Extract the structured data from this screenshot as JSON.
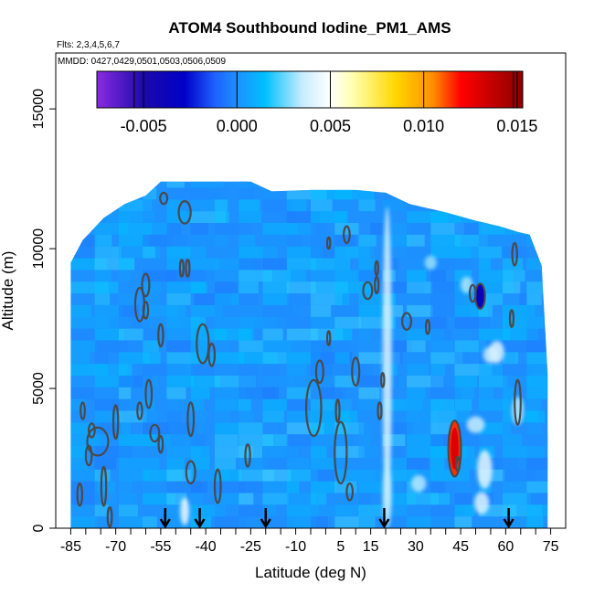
{
  "chart_data": {
    "type": "heatmap",
    "title": "ATOM4 Southbound Iodine_PM1_AMS",
    "flights_label": "Flts: 2,3,4,5,6,7",
    "mmdd_label": "MMDD: 0427,0429,0501,0503,0506,0509",
    "xlabel": "Latitude (deg N)",
    "ylabel": "Altitude (m)",
    "xlim": [
      -90,
      80
    ],
    "ylim": [
      0,
      17000
    ],
    "x_ticks": [
      -85,
      -70,
      -55,
      -40,
      -25,
      -10,
      5,
      15,
      30,
      45,
      60,
      75
    ],
    "x_tick_labels": [
      "-85",
      "-70",
      "-55",
      "-40",
      "-25",
      "-10",
      "5",
      "15",
      "30",
      "45",
      "60",
      "75"
    ],
    "x_minor_ticks": [
      -80,
      -75,
      -65,
      -60,
      -50,
      -45,
      -35,
      -30,
      -20,
      -15,
      -5,
      0,
      10,
      20,
      25,
      35,
      40,
      50,
      55,
      65,
      70
    ],
    "y_ticks": [
      0,
      5000,
      10000,
      15000
    ],
    "y_tick_labels": [
      "0",
      "5000",
      "10000",
      "15000"
    ],
    "colorbar": {
      "range": [
        -0.0075,
        0.0153
      ],
      "ticks": [
        -0.005,
        0.0,
        0.005,
        0.01,
        0.015
      ],
      "tick_labels": [
        "-0.005",
        "0.000",
        "0.005",
        "0.010",
        "0.015"
      ],
      "stops": [
        {
          "v": -0.0075,
          "c": "#8a2be2"
        },
        {
          "v": -0.005,
          "c": "#1c0aa8"
        },
        {
          "v": -0.0028,
          "c": "#0000c8"
        },
        {
          "v": -0.0012,
          "c": "#1e60ff"
        },
        {
          "v": 0.0,
          "c": "#1e90ff"
        },
        {
          "v": 0.0015,
          "c": "#00bfff"
        },
        {
          "v": 0.0035,
          "c": "#c8ecff"
        },
        {
          "v": 0.005,
          "c": "#ffffff"
        },
        {
          "v": 0.0062,
          "c": "#ffffb0"
        },
        {
          "v": 0.0085,
          "c": "#ffd700"
        },
        {
          "v": 0.0105,
          "c": "#ff8c00"
        },
        {
          "v": 0.012,
          "c": "#ff0000"
        },
        {
          "v": 0.0153,
          "c": "#8b0000"
        }
      ]
    },
    "profile_top": [
      [
        -85,
        9500
      ],
      [
        -81,
        10300
      ],
      [
        -74,
        11100
      ],
      [
        -67,
        11600
      ],
      [
        -60,
        11900
      ],
      [
        -55,
        12400
      ],
      [
        -45,
        12400
      ],
      [
        -35,
        12400
      ],
      [
        -25,
        12400
      ],
      [
        -18,
        12050
      ],
      [
        -5,
        12100
      ],
      [
        10,
        12100
      ],
      [
        20,
        12000
      ],
      [
        28,
        11600
      ],
      [
        40,
        11300
      ],
      [
        50,
        11000
      ],
      [
        58,
        10800
      ],
      [
        64,
        10600
      ],
      [
        68,
        10500
      ],
      [
        72,
        9400
      ],
      [
        74,
        5500
      ]
    ],
    "profile_bottom": [
      [
        -85,
        0
      ],
      [
        -75,
        0
      ],
      [
        -60,
        0
      ],
      [
        -40,
        0
      ],
      [
        -20,
        0
      ],
      [
        0,
        0
      ],
      [
        20,
        0
      ],
      [
        40,
        0
      ],
      [
        60,
        0
      ],
      [
        74,
        0
      ]
    ],
    "highlights": [
      {
        "x": 20.5,
        "y": 6000,
        "rx": 1.5,
        "ry": 5500,
        "value": 0.004
      },
      {
        "x": 20.5,
        "y": 1200,
        "rx": 1.5,
        "ry": 1200,
        "value": 0.0035
      },
      {
        "x": 53,
        "y": 2100,
        "rx": 2.5,
        "ry": 700,
        "value": 0.0042
      },
      {
        "x": 50,
        "y": 3700,
        "rx": 3,
        "ry": 300,
        "value": 0.0035
      },
      {
        "x": 52,
        "y": 900,
        "rx": 2.5,
        "ry": 400,
        "value": 0.004
      },
      {
        "x": 55,
        "y": 6200,
        "rx": 2.5,
        "ry": 300,
        "value": 0.0035
      },
      {
        "x": 57,
        "y": 6300,
        "rx": 2.5,
        "ry": 400,
        "value": 0.004
      },
      {
        "x": 47,
        "y": 8700,
        "rx": 2,
        "ry": 300,
        "value": 0.0032
      },
      {
        "x": -47,
        "y": 600,
        "rx": 1.5,
        "ry": 500,
        "value": 0.0045
      },
      {
        "x": 31,
        "y": 1600,
        "rx": 2.5,
        "ry": 300,
        "value": 0.0033
      },
      {
        "x": 64,
        "y": 4200,
        "rx": 2,
        "ry": 500,
        "value": 0.0033
      },
      {
        "x": 35,
        "y": 9500,
        "rx": 2,
        "ry": 250,
        "value": 0.003
      }
    ],
    "features": [
      {
        "x": 43,
        "y": 2850,
        "rx": 2.1,
        "ry": 1000,
        "value": 0.0115
      },
      {
        "x": 43,
        "y": 2850,
        "rx": 1.3,
        "ry": 750,
        "value": 0.013
      },
      {
        "x": 51.5,
        "y": 8300,
        "rx": 1.6,
        "ry": 450,
        "value": -0.0035
      }
    ],
    "contours": [
      {
        "x": -62,
        "y": 8000,
        "rx": 1.5,
        "ry": 600
      },
      {
        "x": -60,
        "y": 8700,
        "rx": 1.2,
        "ry": 400
      },
      {
        "x": -59,
        "y": 4800,
        "rx": 1.0,
        "ry": 500
      },
      {
        "x": -60,
        "y": 7800,
        "rx": 0.8,
        "ry": 300
      },
      {
        "x": -55,
        "y": 6900,
        "rx": 0.8,
        "ry": 400
      },
      {
        "x": -54,
        "y": 11800,
        "rx": 1.2,
        "ry": 200
      },
      {
        "x": -47,
        "y": 11300,
        "rx": 2.0,
        "ry": 400
      },
      {
        "x": -48,
        "y": 9300,
        "rx": 0.6,
        "ry": 300
      },
      {
        "x": -46,
        "y": 9300,
        "rx": 0.6,
        "ry": 300
      },
      {
        "x": -41,
        "y": 6600,
        "rx": 2.0,
        "ry": 700
      },
      {
        "x": -38,
        "y": 6200,
        "rx": 1.0,
        "ry": 400
      },
      {
        "x": -45,
        "y": 3900,
        "rx": 1.0,
        "ry": 600
      },
      {
        "x": -45,
        "y": 2000,
        "rx": 1.5,
        "ry": 400
      },
      {
        "x": -57,
        "y": 3400,
        "rx": 1.5,
        "ry": 300
      },
      {
        "x": -76,
        "y": 3100,
        "rx": 3.5,
        "ry": 500
      },
      {
        "x": -78,
        "y": 3500,
        "rx": 1.0,
        "ry": 250
      },
      {
        "x": -79,
        "y": 2600,
        "rx": 1.0,
        "ry": 350
      },
      {
        "x": -70,
        "y": 3800,
        "rx": 0.8,
        "ry": 600
      },
      {
        "x": -62,
        "y": 4200,
        "rx": 0.8,
        "ry": 300
      },
      {
        "x": -55,
        "y": 3000,
        "rx": 0.7,
        "ry": 300
      },
      {
        "x": -74,
        "y": 1500,
        "rx": 0.8,
        "ry": 700
      },
      {
        "x": -82,
        "y": 1200,
        "rx": 0.8,
        "ry": 400
      },
      {
        "x": -81,
        "y": 4200,
        "rx": 0.7,
        "ry": 300
      },
      {
        "x": -72,
        "y": 400,
        "rx": 0.7,
        "ry": 350
      },
      {
        "x": -36,
        "y": 1500,
        "rx": 1.0,
        "ry": 600
      },
      {
        "x": -26,
        "y": 2600,
        "rx": 0.8,
        "ry": 400
      },
      {
        "x": -4,
        "y": 4300,
        "rx": 2.5,
        "ry": 1000
      },
      {
        "x": -2,
        "y": 5600,
        "rx": 1.2,
        "ry": 400
      },
      {
        "x": 1,
        "y": 6800,
        "rx": 0.5,
        "ry": 250
      },
      {
        "x": 5,
        "y": 2700,
        "rx": 2.0,
        "ry": 1100
      },
      {
        "x": 8,
        "y": 1300,
        "rx": 1.0,
        "ry": 300
      },
      {
        "x": 4,
        "y": 4200,
        "rx": 0.6,
        "ry": 400
      },
      {
        "x": 10,
        "y": 5600,
        "rx": 1.2,
        "ry": 500
      },
      {
        "x": 14,
        "y": 8500,
        "rx": 1.5,
        "ry": 300
      },
      {
        "x": 17,
        "y": 8700,
        "rx": 0.6,
        "ry": 300
      },
      {
        "x": 18,
        "y": 4200,
        "rx": 0.6,
        "ry": 300
      },
      {
        "x": 19,
        "y": 5300,
        "rx": 0.5,
        "ry": 250
      },
      {
        "x": 27,
        "y": 7400,
        "rx": 1.5,
        "ry": 300
      },
      {
        "x": 7,
        "y": 10500,
        "rx": 1.0,
        "ry": 300
      },
      {
        "x": 1,
        "y": 10200,
        "rx": 0.5,
        "ry": 200
      },
      {
        "x": 17,
        "y": 9300,
        "rx": 0.5,
        "ry": 250
      },
      {
        "x": 63,
        "y": 9800,
        "rx": 0.8,
        "ry": 400
      },
      {
        "x": 64,
        "y": 4500,
        "rx": 1.0,
        "ry": 800
      },
      {
        "x": 62,
        "y": 7500,
        "rx": 0.6,
        "ry": 300
      },
      {
        "x": 34,
        "y": 7200,
        "rx": 0.6,
        "ry": 250
      },
      {
        "x": 49,
        "y": 8400,
        "rx": 1.0,
        "ry": 300
      },
      {
        "x": 44,
        "y": 2300,
        "rx": 0.6,
        "ry": 250
      }
    ],
    "flight_marker_latitudes": [
      -53.5,
      -42,
      -20,
      19.5,
      61
    ],
    "marker_color": "#000000",
    "contour_color": "#4a4a4a",
    "background_color": "#ffffff",
    "base_field_color": "#1e90ff"
  }
}
